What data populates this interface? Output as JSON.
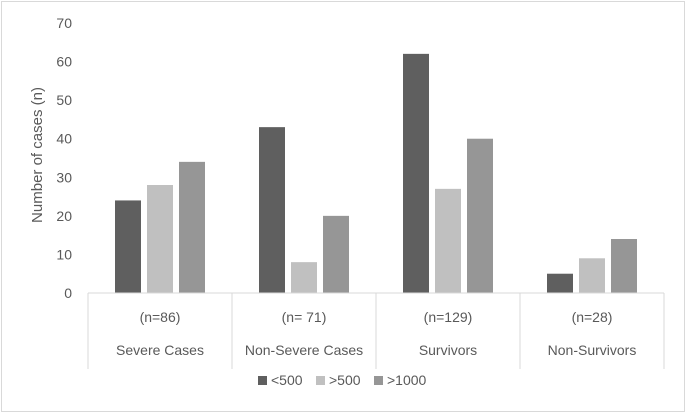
{
  "chart_data": {
    "type": "bar",
    "title": "",
    "xlabel": "",
    "ylabel": "Number of cases (n)",
    "ylim": [
      0,
      70
    ],
    "yticks": [
      0,
      10,
      20,
      30,
      40,
      50,
      60,
      70
    ],
    "categories": [
      "Severe Cases",
      "Non-Severe Cases",
      "Survivors",
      "Non-Survivors"
    ],
    "category_counts": [
      "(n=86)",
      "(n= 71)",
      "(n=129)",
      "(n=28)"
    ],
    "series": [
      {
        "name": "<500",
        "color": "#5f5f5f",
        "values": [
          24,
          43,
          62,
          5
        ]
      },
      {
        "name": ">500",
        "color": "#c0c0c0",
        "values": [
          28,
          8,
          27,
          9
        ]
      },
      {
        "name": ">1000",
        "color": "#969696",
        "values": [
          34,
          20,
          40,
          14
        ]
      }
    ],
    "grid": false,
    "legend": "bottom"
  }
}
